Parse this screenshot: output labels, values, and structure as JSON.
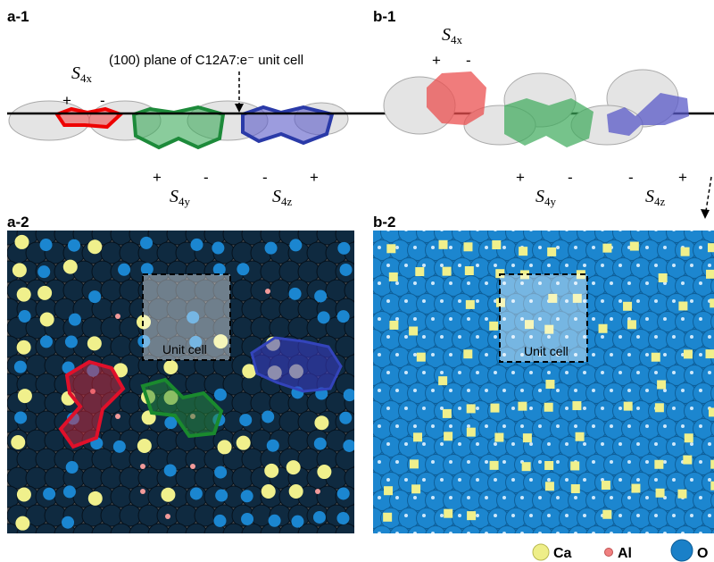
{
  "panels": [
    {
      "label": "a-1",
      "annotation": "(100) plane of C12A7:e⁻ unit cell",
      "sites": [
        {
          "symbol": "S",
          "subscript": "4x",
          "signs": [
            "+",
            "-"
          ]
        },
        {
          "symbol": "S",
          "subscript": "4y",
          "signs": [
            "+",
            "-"
          ]
        },
        {
          "symbol": "S",
          "subscript": "4z",
          "signs": [
            "-",
            "+"
          ]
        }
      ]
    },
    {
      "label": "b-1",
      "sites": [
        {
          "symbol": "S",
          "subscript": "4x",
          "signs": [
            "+",
            "-"
          ]
        },
        {
          "symbol": "S",
          "subscript": "4y",
          "signs": [
            "+",
            "-"
          ]
        },
        {
          "symbol": "S",
          "subscript": "4z",
          "signs": [
            "-",
            "+"
          ]
        }
      ]
    },
    {
      "label": "a-2",
      "box_label": "Unit cell"
    },
    {
      "label": "b-2",
      "box_label": "Unit cell"
    }
  ],
  "legend": [
    {
      "label": "Ca"
    },
    {
      "label": "Al"
    },
    {
      "label": "O"
    }
  ]
}
